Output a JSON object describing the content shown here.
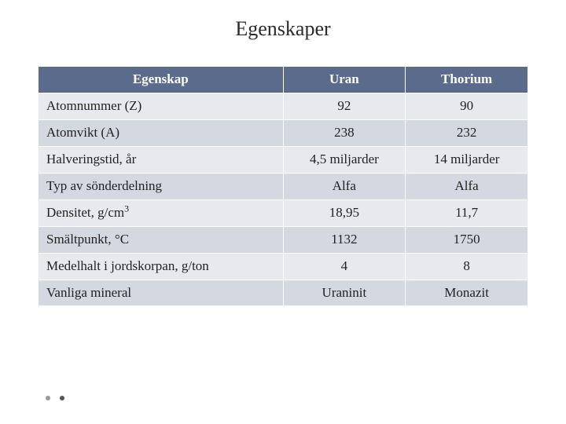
{
  "title": "Egenskaper",
  "table": {
    "columns": [
      "Egenskap",
      "Uran",
      "Thorium"
    ],
    "col_widths_pct": [
      50,
      25,
      25
    ],
    "header_bg": "#5a6b8c",
    "header_fg": "#ffffff",
    "row_bg_odd": "#e7e9ee",
    "row_bg_even": "#d4d8e1",
    "border_color": "#ffffff",
    "font_size_pt": 13,
    "rows": [
      {
        "property": "Atomnummer (Z)",
        "uran": "92",
        "thorium": "90"
      },
      {
        "property": "Atomvikt (A)",
        "uran": "238",
        "thorium": "232"
      },
      {
        "property": "Halveringstid, år",
        "uran": "4,5 miljarder",
        "thorium": "14 miljarder"
      },
      {
        "property": "Typ av sönderdelning",
        "uran": "Alfa",
        "thorium": "Alfa"
      },
      {
        "property": "Densitet, g/cm3",
        "property_has_sup3": true,
        "uran": "18,95",
        "thorium": "11,7"
      },
      {
        "property": "Smältpunkt, °C",
        "uran": "1132",
        "thorium": "1750"
      },
      {
        "property": "Medelhalt i jordskorpan, g/ton",
        "uran": "4",
        "thorium": "8"
      },
      {
        "property": "Vanliga mineral",
        "uran": "Uraninit",
        "thorium": "Monazit"
      }
    ]
  },
  "background_color": "#ffffff",
  "title_fontsize_pt": 20,
  "decorative_dots": {
    "count": 2,
    "colors": [
      "#9a9a9a",
      "#555555"
    ]
  }
}
